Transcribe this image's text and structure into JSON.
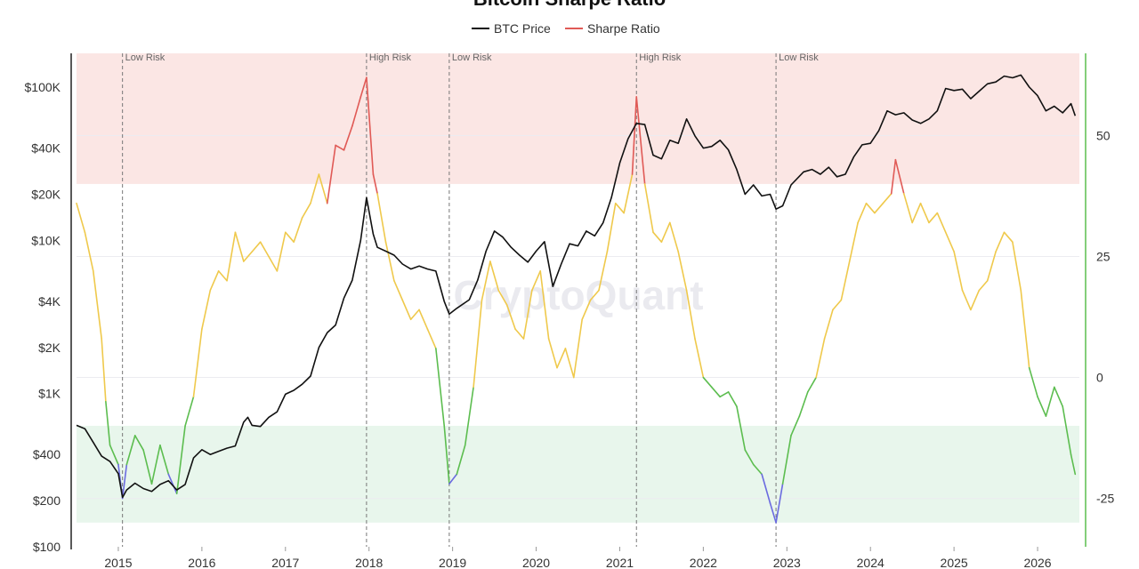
{
  "chart_data": {
    "type": "line",
    "title": "Bitcoin Sharpe Ratio",
    "watermark": "CryptoQuant",
    "legend": [
      {
        "name": "BTC Price",
        "color": "#111111"
      },
      {
        "name": "Sharpe Ratio",
        "color": "#e05a56"
      }
    ],
    "legend_position": "top-center",
    "x_ticks": [
      "2015",
      "2016",
      "2017",
      "2018",
      "2019",
      "2020",
      "2021",
      "2022",
      "2023",
      "2024",
      "2025",
      "2026"
    ],
    "x_range": [
      2014.5,
      2026.5
    ],
    "y_left": {
      "scale": "log",
      "ticks": [
        {
          "value": 100,
          "label": "$100"
        },
        {
          "value": 200,
          "label": "$200"
        },
        {
          "value": 400,
          "label": "$400"
        },
        {
          "value": 1000,
          "label": "$1K"
        },
        {
          "value": 2000,
          "label": "$2K"
        },
        {
          "value": 4000,
          "label": "$4K"
        },
        {
          "value": 10000,
          "label": "$10K"
        },
        {
          "value": 20000,
          "label": "$20K"
        },
        {
          "value": 40000,
          "label": "$40K"
        },
        {
          "value": 100000,
          "label": "$100K"
        }
      ]
    },
    "y_right": {
      "range": [
        -35,
        67
      ],
      "ticks": [
        {
          "value": 50,
          "label": "50"
        },
        {
          "value": 25,
          "label": "25"
        },
        {
          "value": 0,
          "label": "0"
        },
        {
          "value": -25,
          "label": "-25"
        }
      ]
    },
    "zones": [
      {
        "name": "high-risk-zone",
        "from": 40,
        "to": 67,
        "color": "#fbe6e4"
      },
      {
        "name": "low-risk-zone",
        "from": -30,
        "to": -10,
        "color": "#e8f6ec"
      }
    ],
    "sharpe_colors": {
      "high": "#e05a56",
      "neutral": "#efc94c",
      "low": "#5cbd4f",
      "extreme_low": "#6b6be0"
    },
    "thresholds": {
      "high": 40,
      "low": -0.5,
      "extreme_low": -21
    },
    "markers": [
      {
        "x": 2015.05,
        "label": "Low Risk"
      },
      {
        "x": 2017.97,
        "label": "High Risk"
      },
      {
        "x": 2018.96,
        "label": "Low Risk"
      },
      {
        "x": 2021.2,
        "label": "High Risk"
      },
      {
        "x": 2022.87,
        "label": "Low Risk"
      }
    ],
    "btc_price": [
      [
        2014.5,
        620
      ],
      [
        2014.6,
        590
      ],
      [
        2014.7,
        480
      ],
      [
        2014.8,
        390
      ],
      [
        2014.9,
        360
      ],
      [
        2015.0,
        300
      ],
      [
        2015.05,
        210
      ],
      [
        2015.1,
        235
      ],
      [
        2015.2,
        260
      ],
      [
        2015.3,
        240
      ],
      [
        2015.4,
        230
      ],
      [
        2015.5,
        255
      ],
      [
        2015.6,
        270
      ],
      [
        2015.7,
        235
      ],
      [
        2015.8,
        255
      ],
      [
        2015.9,
        380
      ],
      [
        2016.0,
        430
      ],
      [
        2016.1,
        400
      ],
      [
        2016.2,
        420
      ],
      [
        2016.3,
        440
      ],
      [
        2016.4,
        455
      ],
      [
        2016.5,
        650
      ],
      [
        2016.55,
        700
      ],
      [
        2016.6,
        620
      ],
      [
        2016.7,
        610
      ],
      [
        2016.8,
        700
      ],
      [
        2016.9,
        760
      ],
      [
        2017.0,
        990
      ],
      [
        2017.1,
        1050
      ],
      [
        2017.2,
        1150
      ],
      [
        2017.3,
        1300
      ],
      [
        2017.4,
        2000
      ],
      [
        2017.5,
        2500
      ],
      [
        2017.6,
        2800
      ],
      [
        2017.7,
        4200
      ],
      [
        2017.8,
        5500
      ],
      [
        2017.9,
        10000
      ],
      [
        2017.97,
        19000
      ],
      [
        2018.05,
        11000
      ],
      [
        2018.1,
        9000
      ],
      [
        2018.2,
        8500
      ],
      [
        2018.3,
        8000
      ],
      [
        2018.4,
        7000
      ],
      [
        2018.5,
        6500
      ],
      [
        2018.6,
        6800
      ],
      [
        2018.7,
        6500
      ],
      [
        2018.8,
        6300
      ],
      [
        2018.9,
        4000
      ],
      [
        2018.96,
        3300
      ],
      [
        2019.05,
        3600
      ],
      [
        2019.2,
        4100
      ],
      [
        2019.3,
        5500
      ],
      [
        2019.4,
        8500
      ],
      [
        2019.5,
        11500
      ],
      [
        2019.6,
        10500
      ],
      [
        2019.7,
        9000
      ],
      [
        2019.8,
        8000
      ],
      [
        2019.9,
        7200
      ],
      [
        2020.0,
        8500
      ],
      [
        2020.1,
        9800
      ],
      [
        2020.2,
        5000
      ],
      [
        2020.3,
        7000
      ],
      [
        2020.4,
        9500
      ],
      [
        2020.5,
        9200
      ],
      [
        2020.6,
        11500
      ],
      [
        2020.7,
        10700
      ],
      [
        2020.8,
        13000
      ],
      [
        2020.9,
        19000
      ],
      [
        2021.0,
        32000
      ],
      [
        2021.1,
        46000
      ],
      [
        2021.2,
        58000
      ],
      [
        2021.3,
        57000
      ],
      [
        2021.4,
        36000
      ],
      [
        2021.5,
        34000
      ],
      [
        2021.6,
        45000
      ],
      [
        2021.7,
        43000
      ],
      [
        2021.8,
        62000
      ],
      [
        2021.9,
        48000
      ],
      [
        2022.0,
        40000
      ],
      [
        2022.1,
        41000
      ],
      [
        2022.2,
        45000
      ],
      [
        2022.3,
        39000
      ],
      [
        2022.4,
        29000
      ],
      [
        2022.5,
        20000
      ],
      [
        2022.6,
        23000
      ],
      [
        2022.7,
        19500
      ],
      [
        2022.8,
        20000
      ],
      [
        2022.87,
        16000
      ],
      [
        2022.95,
        16800
      ],
      [
        2023.05,
        23000
      ],
      [
        2023.2,
        28000
      ],
      [
        2023.3,
        29000
      ],
      [
        2023.4,
        27000
      ],
      [
        2023.5,
        30000
      ],
      [
        2023.6,
        26000
      ],
      [
        2023.7,
        27000
      ],
      [
        2023.8,
        35000
      ],
      [
        2023.9,
        42000
      ],
      [
        2024.0,
        43000
      ],
      [
        2024.1,
        52000
      ],
      [
        2024.2,
        70000
      ],
      [
        2024.3,
        66000
      ],
      [
        2024.4,
        68000
      ],
      [
        2024.5,
        61000
      ],
      [
        2024.6,
        58000
      ],
      [
        2024.7,
        62000
      ],
      [
        2024.8,
        70000
      ],
      [
        2024.9,
        98000
      ],
      [
        2025.0,
        95000
      ],
      [
        2025.1,
        97000
      ],
      [
        2025.2,
        84000
      ],
      [
        2025.3,
        94000
      ],
      [
        2025.4,
        105000
      ],
      [
        2025.5,
        108000
      ],
      [
        2025.6,
        118000
      ],
      [
        2025.7,
        115000
      ],
      [
        2025.8,
        120000
      ],
      [
        2025.9,
        100000
      ],
      [
        2026.0,
        88000
      ],
      [
        2026.1,
        70000
      ],
      [
        2026.2,
        75000
      ],
      [
        2026.3,
        68000
      ],
      [
        2026.4,
        78000
      ],
      [
        2026.45,
        65000
      ]
    ],
    "sharpe_ratio": [
      [
        2014.5,
        36
      ],
      [
        2014.6,
        30
      ],
      [
        2014.7,
        22
      ],
      [
        2014.8,
        8
      ],
      [
        2014.85,
        -5
      ],
      [
        2014.9,
        -14
      ],
      [
        2015.0,
        -18
      ],
      [
        2015.05,
        -25
      ],
      [
        2015.1,
        -18
      ],
      [
        2015.2,
        -12
      ],
      [
        2015.3,
        -15
      ],
      [
        2015.4,
        -22
      ],
      [
        2015.5,
        -14
      ],
      [
        2015.6,
        -20
      ],
      [
        2015.7,
        -24
      ],
      [
        2015.8,
        -10
      ],
      [
        2015.9,
        -4
      ],
      [
        2016.0,
        10
      ],
      [
        2016.1,
        18
      ],
      [
        2016.2,
        22
      ],
      [
        2016.3,
        20
      ],
      [
        2016.4,
        30
      ],
      [
        2016.5,
        24
      ],
      [
        2016.6,
        26
      ],
      [
        2016.7,
        28
      ],
      [
        2016.8,
        25
      ],
      [
        2016.9,
        22
      ],
      [
        2017.0,
        30
      ],
      [
        2017.1,
        28
      ],
      [
        2017.2,
        33
      ],
      [
        2017.3,
        36
      ],
      [
        2017.4,
        42
      ],
      [
        2017.5,
        36
      ],
      [
        2017.6,
        48
      ],
      [
        2017.7,
        47
      ],
      [
        2017.8,
        52
      ],
      [
        2017.9,
        58
      ],
      [
        2017.97,
        62
      ],
      [
        2018.05,
        42
      ],
      [
        2018.1,
        38
      ],
      [
        2018.2,
        28
      ],
      [
        2018.3,
        20
      ],
      [
        2018.4,
        16
      ],
      [
        2018.5,
        12
      ],
      [
        2018.6,
        14
      ],
      [
        2018.7,
        10
      ],
      [
        2018.8,
        6
      ],
      [
        2018.9,
        -10
      ],
      [
        2018.96,
        -22
      ],
      [
        2019.05,
        -20
      ],
      [
        2019.15,
        -14
      ],
      [
        2019.25,
        -2
      ],
      [
        2019.35,
        16
      ],
      [
        2019.45,
        24
      ],
      [
        2019.55,
        18
      ],
      [
        2019.65,
        15
      ],
      [
        2019.75,
        10
      ],
      [
        2019.85,
        8
      ],
      [
        2019.95,
        18
      ],
      [
        2020.05,
        22
      ],
      [
        2020.15,
        8
      ],
      [
        2020.25,
        2
      ],
      [
        2020.35,
        6
      ],
      [
        2020.45,
        0
      ],
      [
        2020.55,
        12
      ],
      [
        2020.65,
        16
      ],
      [
        2020.75,
        18
      ],
      [
        2020.85,
        26
      ],
      [
        2020.95,
        36
      ],
      [
        2021.05,
        34
      ],
      [
        2021.15,
        42
      ],
      [
        2021.2,
        58
      ],
      [
        2021.3,
        40
      ],
      [
        2021.4,
        30
      ],
      [
        2021.5,
        28
      ],
      [
        2021.6,
        32
      ],
      [
        2021.7,
        26
      ],
      [
        2021.8,
        18
      ],
      [
        2021.9,
        8
      ],
      [
        2022.0,
        0
      ],
      [
        2022.1,
        -2
      ],
      [
        2022.2,
        -4
      ],
      [
        2022.3,
        -3
      ],
      [
        2022.4,
        -6
      ],
      [
        2022.5,
        -15
      ],
      [
        2022.6,
        -18
      ],
      [
        2022.7,
        -20
      ],
      [
        2022.8,
        -26
      ],
      [
        2022.87,
        -30
      ],
      [
        2022.95,
        -22
      ],
      [
        2023.05,
        -12
      ],
      [
        2023.15,
        -8
      ],
      [
        2023.25,
        -3
      ],
      [
        2023.35,
        0
      ],
      [
        2023.45,
        8
      ],
      [
        2023.55,
        14
      ],
      [
        2023.65,
        16
      ],
      [
        2023.75,
        24
      ],
      [
        2023.85,
        32
      ],
      [
        2023.95,
        36
      ],
      [
        2024.05,
        34
      ],
      [
        2024.15,
        36
      ],
      [
        2024.25,
        38
      ],
      [
        2024.3,
        45
      ],
      [
        2024.4,
        38
      ],
      [
        2024.5,
        32
      ],
      [
        2024.6,
        36
      ],
      [
        2024.7,
        32
      ],
      [
        2024.8,
        34
      ],
      [
        2024.9,
        30
      ],
      [
        2025.0,
        26
      ],
      [
        2025.1,
        18
      ],
      [
        2025.2,
        14
      ],
      [
        2025.3,
        18
      ],
      [
        2025.4,
        20
      ],
      [
        2025.5,
        26
      ],
      [
        2025.6,
        30
      ],
      [
        2025.7,
        28
      ],
      [
        2025.8,
        18
      ],
      [
        2025.9,
        2
      ],
      [
        2026.0,
        -4
      ],
      [
        2026.1,
        -8
      ],
      [
        2026.2,
        -2
      ],
      [
        2026.3,
        -6
      ],
      [
        2026.4,
        -16
      ],
      [
        2026.45,
        -20
      ]
    ]
  }
}
